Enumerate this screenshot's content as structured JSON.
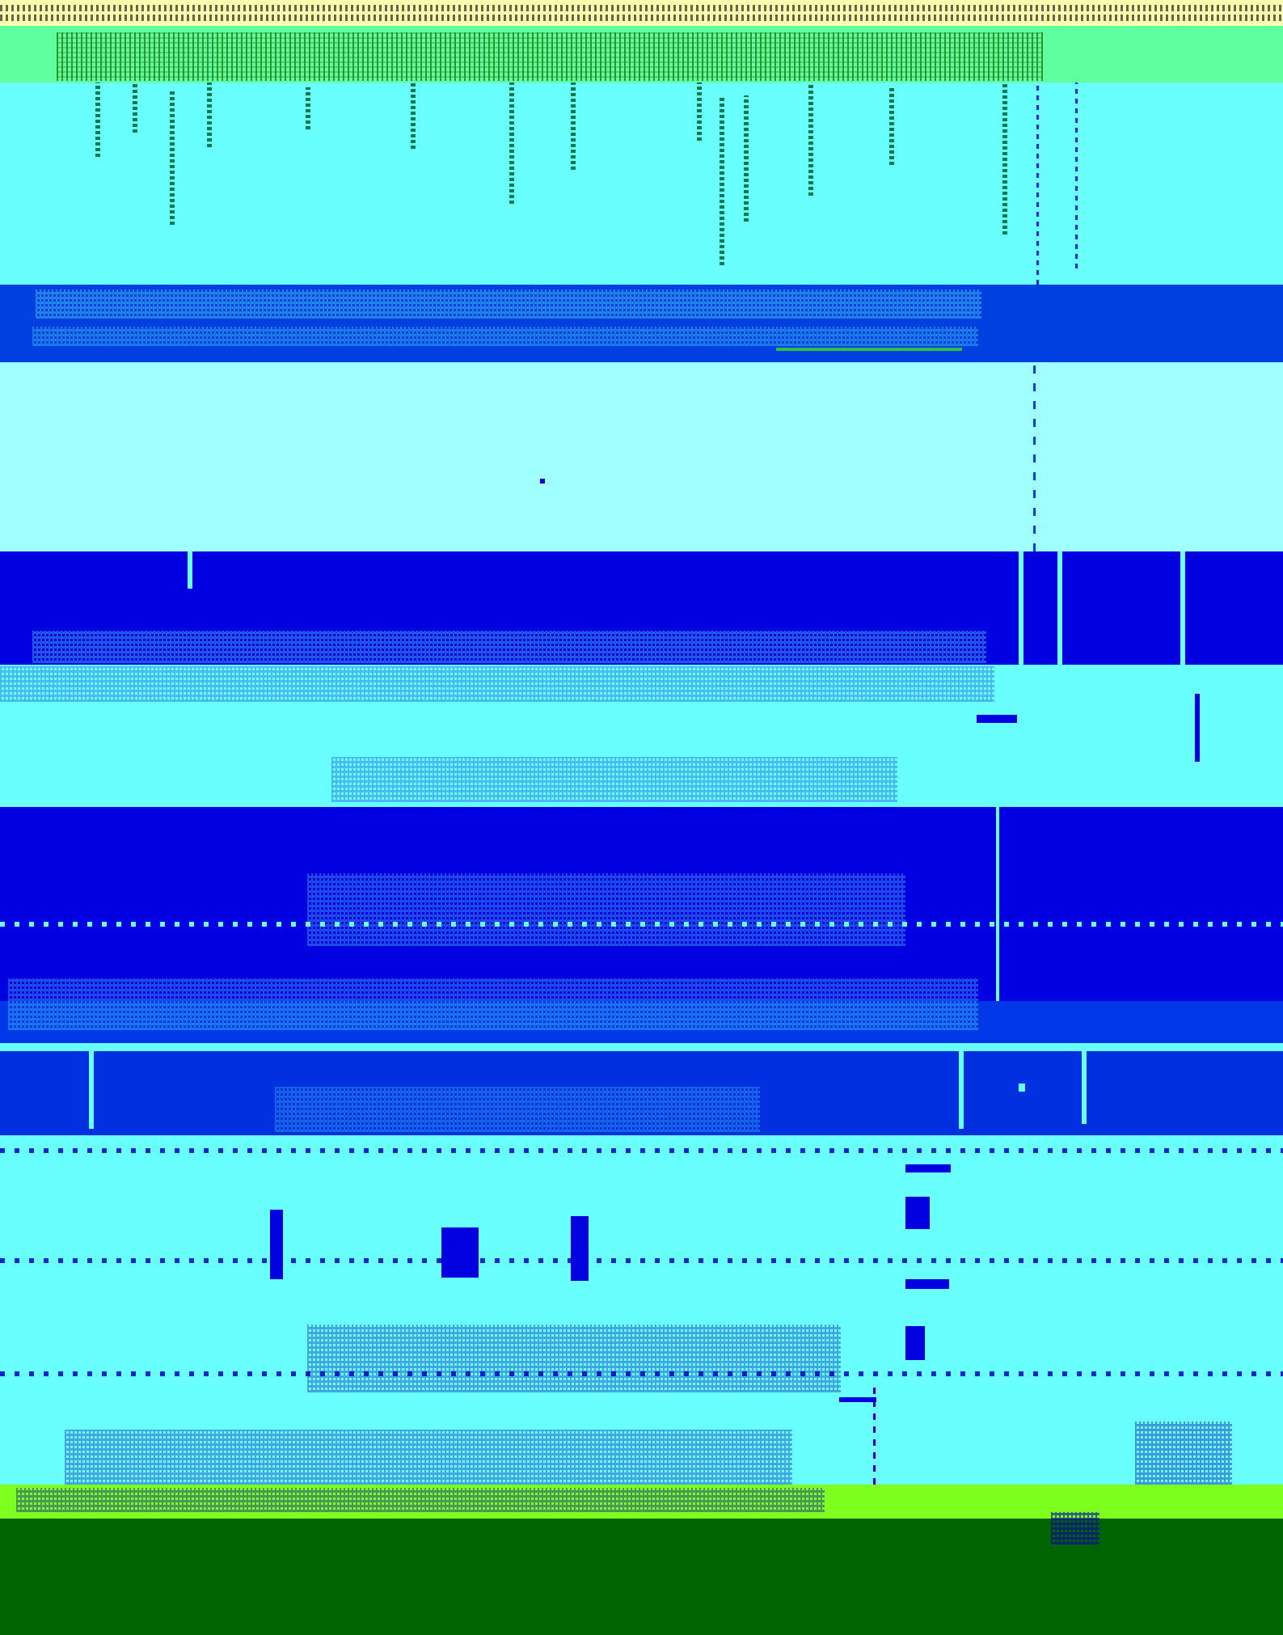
{
  "screen": {
    "background": "#6affff",
    "palette": {
      "top": "#ffffb0",
      "green": "#5fff9f",
      "cyan": "#6affff",
      "pale": "#a0ffff",
      "blue": "#0040e0",
      "navy": "#0000e0",
      "lime": "#7dff20",
      "forest": "#006400"
    },
    "note": ""
  }
}
